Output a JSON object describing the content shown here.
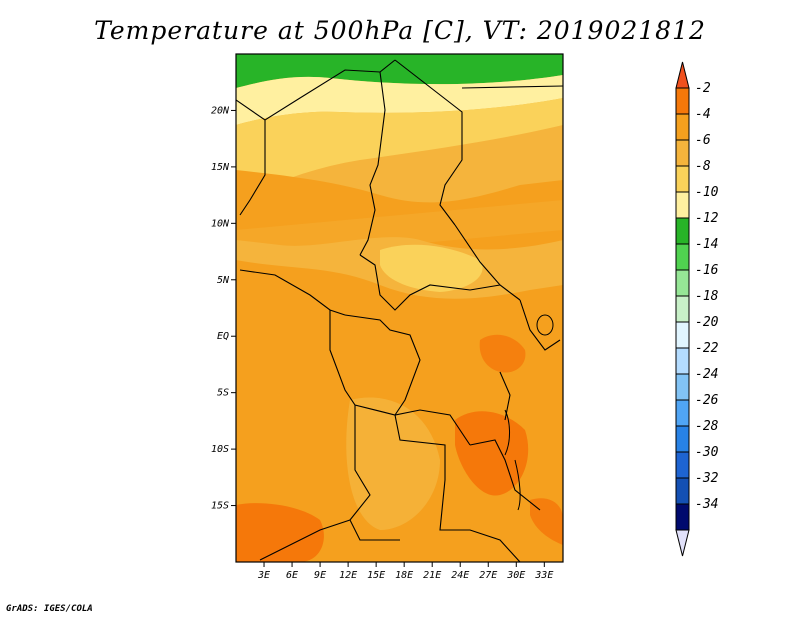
{
  "title": "Temperature at 500hPa [C], VT: 2019021812",
  "credit": "GrADS: IGES/COLA",
  "map": {
    "lon_range": [
      0,
      35
    ],
    "lat_range": [
      -20,
      25
    ],
    "x_ticks": [
      "3E",
      "6E",
      "9E",
      "12E",
      "15E",
      "18E",
      "21E",
      "24E",
      "27E",
      "30E",
      "33E"
    ],
    "y_ticks": [
      "20N",
      "15N",
      "10N",
      "5N",
      "EQ",
      "5S",
      "10S",
      "15S"
    ]
  },
  "colorbar": {
    "labels": [
      "-2",
      "-4",
      "-6",
      "-8",
      "-10",
      "-12",
      "-14",
      "-16",
      "-18",
      "-20",
      "-22",
      "-24",
      "-26",
      "-28",
      "-30",
      "-32",
      "-34"
    ],
    "colors": [
      "#f0501e",
      "#f5780a",
      "#f5a01e",
      "#f5b43c",
      "#fad25a",
      "#fff0a0",
      "#28b428",
      "#50d250",
      "#96e696",
      "#c8f0c8",
      "#e1f5ff",
      "#b4dcff",
      "#82c3f5",
      "#50a5f5",
      "#2882e6",
      "#1e64d2",
      "#1450b4",
      "#000a6e",
      "#e1e1fa"
    ]
  }
}
